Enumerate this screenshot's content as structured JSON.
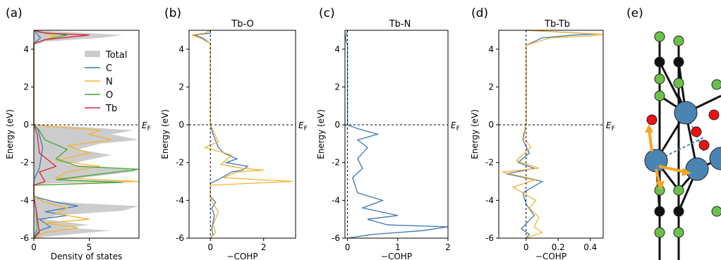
{
  "panels": [
    {
      "letter": "(a)",
      "title": ""
    },
    {
      "letter": "(b)",
      "title": "Tb-O"
    },
    {
      "letter": "(c)",
      "title": "Tb-N"
    },
    {
      "letter": "(d)",
      "title": "Tb-Tb"
    },
    {
      "letter": "(e)",
      "title": ""
    }
  ],
  "colors": {
    "total": "#cccccc",
    "C": "#3c78b4",
    "N": "#f2b233",
    "O": "#44a43a",
    "Tb": "#d7263d",
    "struct_green": "#6cc04a",
    "struct_black": "#111111",
    "struct_red": "#ee1111",
    "struct_blue": "#4a84b2",
    "struct_orange": "#f5a623"
  },
  "chart_data": [
    {
      "id": "a",
      "type": "line",
      "title": "",
      "xlabel": "Density of states",
      "ylabel": "Energy (eV)",
      "xlim": [
        0,
        9.5
      ],
      "ylim": [
        -6,
        5
      ],
      "xticks": [
        0,
        5
      ],
      "yticks": [
        -6,
        -4,
        -2,
        0,
        2,
        4
      ],
      "fermi_label": "E",
      "fermi_sub": "F",
      "legend_position": "upper right",
      "series": [
        {
          "name": "Total",
          "key": "total",
          "fill": true,
          "points": [
            [
              0,
              -6
            ],
            [
              1.5,
              -5.9
            ],
            [
              7,
              -5.6
            ],
            [
              3,
              -5.45
            ],
            [
              5,
              -5.3
            ],
            [
              1,
              -5.0
            ],
            [
              2,
              -4.8
            ],
            [
              8,
              -4.55
            ],
            [
              9.5,
              -4.3
            ],
            [
              4,
              -4.15
            ],
            [
              1,
              -4.0
            ],
            [
              0,
              -3.7
            ],
            [
              0,
              -3.2
            ],
            [
              1.5,
              -3.1
            ],
            [
              9.5,
              -3.0
            ],
            [
              3,
              -2.9
            ],
            [
              9.5,
              -2.45
            ],
            [
              8,
              -2.3
            ],
            [
              3,
              -2.1
            ],
            [
              7,
              -1.6
            ],
            [
              4,
              -1.3
            ],
            [
              6,
              -1.0
            ],
            [
              9.5,
              -0.8
            ],
            [
              7,
              -0.5
            ],
            [
              9,
              -0.3
            ],
            [
              4,
              -0.1
            ],
            [
              0,
              0
            ],
            [
              0,
              4.2
            ],
            [
              1,
              4.4
            ],
            [
              6,
              4.6
            ],
            [
              8,
              4.75
            ],
            [
              5,
              4.85
            ],
            [
              0,
              5.0
            ]
          ]
        },
        {
          "name": "C",
          "key": "C",
          "points": [
            [
              0,
              -6
            ],
            [
              0.5,
              -5.6
            ],
            [
              1.5,
              -5.4
            ],
            [
              0.5,
              -5.0
            ],
            [
              3,
              -4.8
            ],
            [
              1,
              -4.6
            ],
            [
              4,
              -4.3
            ],
            [
              2,
              -4.1
            ],
            [
              0,
              -3.8
            ],
            [
              0,
              -2.9
            ],
            [
              0.5,
              -2.3
            ],
            [
              0.8,
              -1.2
            ],
            [
              0.4,
              -0.3
            ],
            [
              0,
              0
            ],
            [
              0,
              4.3
            ],
            [
              0.6,
              4.6
            ],
            [
              0,
              5
            ]
          ]
        },
        {
          "name": "N",
          "key": "N",
          "points": [
            [
              0,
              -6
            ],
            [
              1,
              -5.7
            ],
            [
              4,
              -5.45
            ],
            [
              1,
              -5.2
            ],
            [
              5,
              -5.0
            ],
            [
              2,
              -4.7
            ],
            [
              3,
              -4.4
            ],
            [
              1,
              -4.1
            ],
            [
              0,
              -3.8
            ],
            [
              0,
              -3.2
            ],
            [
              9.5,
              -3.0
            ],
            [
              2,
              -2.8
            ],
            [
              3,
              -2.5
            ],
            [
              6,
              -2.2
            ],
            [
              2,
              -1.9
            ],
            [
              5,
              -1.5
            ],
            [
              3,
              -1.1
            ],
            [
              7,
              -0.8
            ],
            [
              5,
              -0.5
            ],
            [
              6,
              -0.3
            ],
            [
              2,
              -0.1
            ],
            [
              0,
              0
            ],
            [
              0,
              4.3
            ],
            [
              1,
              4.5
            ],
            [
              2,
              4.7
            ],
            [
              0,
              5
            ]
          ]
        },
        {
          "name": "O",
          "key": "O",
          "points": [
            [
              0,
              -6
            ],
            [
              0.3,
              -5.5
            ],
            [
              0.2,
              -4.5
            ],
            [
              0,
              -3.8
            ],
            [
              0,
              -3.2
            ],
            [
              8,
              -3.05
            ],
            [
              2,
              -2.9
            ],
            [
              9.5,
              -2.35
            ],
            [
              4,
              -2.2
            ],
            [
              2,
              -1.8
            ],
            [
              3,
              -1.3
            ],
            [
              1,
              -0.8
            ],
            [
              0.5,
              -0.3
            ],
            [
              0,
              0
            ],
            [
              0,
              4.3
            ],
            [
              1,
              4.5
            ],
            [
              3,
              4.75
            ],
            [
              0.5,
              4.9
            ],
            [
              0,
              5
            ]
          ]
        },
        {
          "name": "Tb",
          "key": "Tb",
          "points": [
            [
              0,
              -6
            ],
            [
              0.5,
              -5.7
            ],
            [
              0.3,
              -4.8
            ],
            [
              0,
              -3.8
            ],
            [
              0,
              -3.2
            ],
            [
              1,
              -3.0
            ],
            [
              0.5,
              -2.5
            ],
            [
              2,
              -2.2
            ],
            [
              0.5,
              -1.5
            ],
            [
              0.3,
              -0.5
            ],
            [
              0,
              0
            ],
            [
              0,
              4.3
            ],
            [
              1,
              4.5
            ],
            [
              5,
              4.75
            ],
            [
              1,
              4.85
            ],
            [
              0,
              5
            ]
          ]
        }
      ]
    },
    {
      "id": "b",
      "type": "line",
      "title": "Tb-O",
      "xlabel": "−COHP",
      "ylabel": "Energy (eV)",
      "xlim": [
        -0.8,
        3.2
      ],
      "ylim": [
        -6,
        5
      ],
      "xticks": [
        0,
        2
      ],
      "yticks": [
        -6,
        -4,
        -2,
        0,
        2,
        4
      ],
      "fermi_label": "E",
      "fermi_sub": "F",
      "series": [
        {
          "key": "C",
          "points": [
            [
              0,
              -6
            ],
            [
              0.1,
              -5.8
            ],
            [
              0.05,
              -5.5
            ],
            [
              0.15,
              -4.8
            ],
            [
              0.05,
              -4.4
            ],
            [
              0.2,
              -4.1
            ],
            [
              0,
              -3.8
            ],
            [
              0,
              -3.1
            ],
            [
              0.3,
              -2.9
            ],
            [
              0.8,
              -2.5
            ],
            [
              1.2,
              -2.4
            ],
            [
              1.4,
              -2.2
            ],
            [
              0.6,
              -2.0
            ],
            [
              1.0,
              -1.8
            ],
            [
              0.5,
              -1.5
            ],
            [
              0.3,
              -1.2
            ],
            [
              0.1,
              -0.5
            ],
            [
              0,
              0
            ],
            [
              0,
              4.3
            ],
            [
              -0.3,
              4.6
            ],
            [
              -0.6,
              4.75
            ],
            [
              0,
              4.85
            ],
            [
              0,
              5
            ]
          ]
        },
        {
          "key": "N",
          "points": [
            [
              0,
              -6
            ],
            [
              0.2,
              -5.7
            ],
            [
              0.1,
              -5.3
            ],
            [
              0.3,
              -4.6
            ],
            [
              0.1,
              -4.2
            ],
            [
              0,
              -3.8
            ],
            [
              0,
              -3.2
            ],
            [
              3.1,
              -3.0
            ],
            [
              0.5,
              -2.8
            ],
            [
              1.0,
              -2.5
            ],
            [
              2.0,
              -2.4
            ],
            [
              1.2,
              -2.3
            ],
            [
              0.4,
              -2.1
            ],
            [
              0.8,
              -1.6
            ],
            [
              -0.2,
              -1.2
            ],
            [
              0.3,
              -0.9
            ],
            [
              0,
              0
            ],
            [
              0,
              4.3
            ],
            [
              -0.4,
              4.6
            ],
            [
              -0.7,
              4.75
            ],
            [
              -0.2,
              4.85
            ],
            [
              0,
              5
            ]
          ]
        }
      ]
    },
    {
      "id": "c",
      "type": "line",
      "title": "Tb-N",
      "xlabel": "−COHP",
      "ylabel": "Energy (eV)",
      "xlim": [
        -0.05,
        2.0
      ],
      "ylim": [
        -6,
        5
      ],
      "xticks": [
        0,
        1,
        2
      ],
      "yticks": [
        -6,
        -4,
        -2,
        0,
        2,
        4
      ],
      "fermi_label": "E",
      "fermi_sub": "F",
      "series": [
        {
          "key": "C",
          "points": [
            [
              0,
              -6
            ],
            [
              0.5,
              -5.8
            ],
            [
              1.5,
              -5.6
            ],
            [
              2.0,
              -5.4
            ],
            [
              0.8,
              -5.3
            ],
            [
              0.4,
              -5.0
            ],
            [
              1.0,
              -4.8
            ],
            [
              0.3,
              -4.4
            ],
            [
              0.7,
              -4.0
            ],
            [
              0.2,
              -3.6
            ],
            [
              0.1,
              -2.8
            ],
            [
              0.3,
              -2.3
            ],
            [
              0.2,
              -1.8
            ],
            [
              0.4,
              -1.2
            ],
            [
              0.2,
              -0.8
            ],
            [
              0.6,
              -0.5
            ],
            [
              0.2,
              -0.2
            ],
            [
              0,
              0
            ],
            [
              0,
              4.2
            ],
            [
              -0.04,
              4.6
            ],
            [
              0,
              5
            ]
          ]
        }
      ]
    },
    {
      "id": "d",
      "type": "line",
      "title": "Tb-Tb",
      "xlabel": "−COHP",
      "ylabel": "Energy (eV)",
      "xlim": [
        -0.17,
        0.48
      ],
      "ylim": [
        -6,
        5
      ],
      "xticks": [
        0.0,
        0.2,
        0.4
      ],
      "yticks": [
        -6,
        -4,
        -2,
        0,
        2,
        4
      ],
      "fermi_label": "E",
      "fermi_sub": "F",
      "series": [
        {
          "key": "C",
          "points": [
            [
              0,
              -6
            ],
            [
              0.02,
              -5.8
            ],
            [
              -0.03,
              -5.5
            ],
            [
              0.05,
              -4.8
            ],
            [
              0.0,
              -4.2
            ],
            [
              -0.02,
              -3.6
            ],
            [
              0.1,
              -3.0
            ],
            [
              -0.12,
              -2.6
            ],
            [
              0.05,
              -2.3
            ],
            [
              -0.05,
              -2.0
            ],
            [
              0.02,
              -1.5
            ],
            [
              -0.02,
              -0.8
            ],
            [
              0,
              0
            ],
            [
              0,
              4.2
            ],
            [
              0.1,
              4.6
            ],
            [
              0.3,
              4.75
            ],
            [
              0.45,
              4.8
            ],
            [
              0,
              5
            ]
          ]
        },
        {
          "key": "N",
          "points": [
            [
              0,
              -6
            ],
            [
              0.1,
              -5.7
            ],
            [
              0.05,
              -5.4
            ],
            [
              0.08,
              -4.9
            ],
            [
              0.02,
              -4.4
            ],
            [
              0.06,
              -4.0
            ],
            [
              0,
              -3.7
            ],
            [
              -0.08,
              -3.3
            ],
            [
              0.06,
              -2.9
            ],
            [
              -0.15,
              -2.5
            ],
            [
              0.08,
              -2.3
            ],
            [
              -0.06,
              -1.9
            ],
            [
              0.03,
              -1.2
            ],
            [
              -0.02,
              -0.6
            ],
            [
              0,
              0
            ],
            [
              0,
              4.2
            ],
            [
              0.15,
              4.6
            ],
            [
              0.4,
              4.7
            ],
            [
              0.48,
              4.78
            ],
            [
              0,
              5
            ]
          ]
        }
      ]
    }
  ]
}
